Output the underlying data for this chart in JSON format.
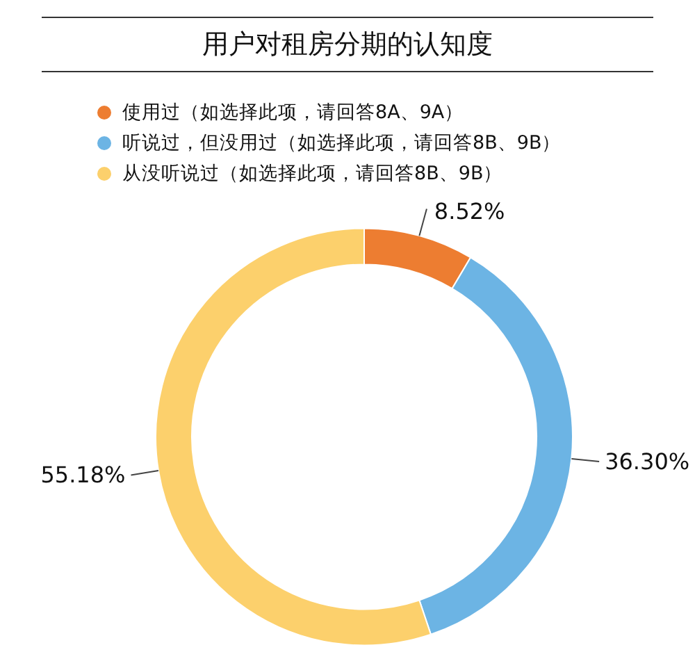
{
  "chart_data": {
    "type": "donut",
    "title": "用户对租房分期的认知度",
    "categories": [
      "使用过（如选择此项，请回答8A、9A）",
      "听说过，但没用过（如选择此项，请回答8B、9B）",
      "从没听说过（如选择此项，请回答8B、9B）"
    ],
    "values": [
      8.52,
      36.3,
      55.18
    ],
    "value_labels": [
      "8.52%",
      "36.30%",
      "55.18%"
    ],
    "colors": [
      "#ed7d31",
      "#6cb4e4",
      "#fcd06c"
    ],
    "legend": "top left"
  }
}
